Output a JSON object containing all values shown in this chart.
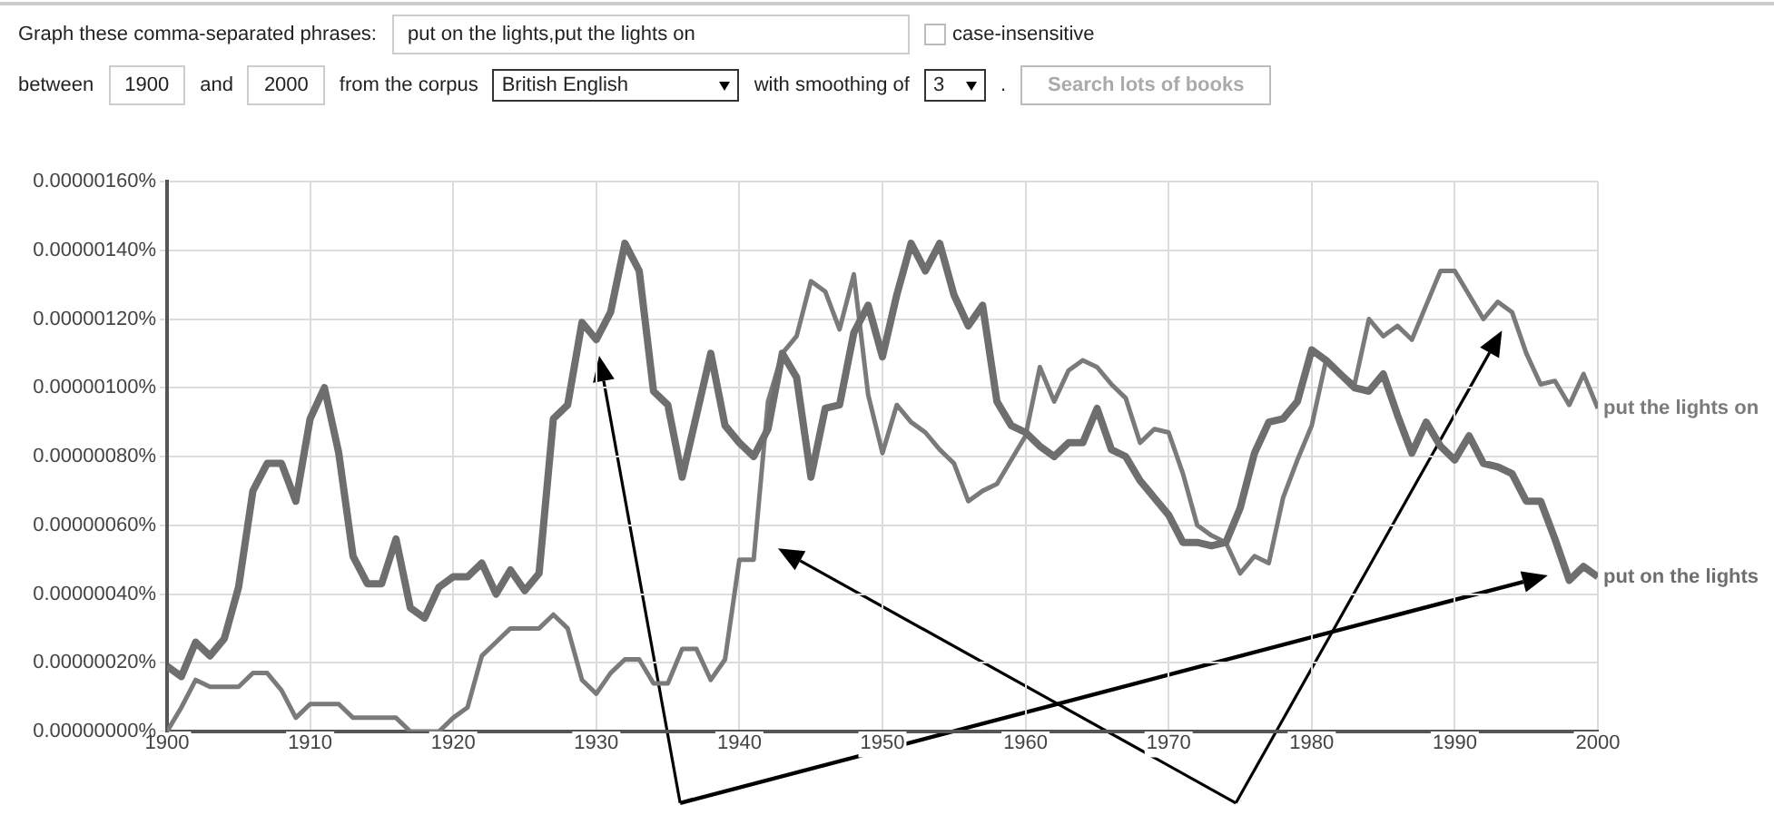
{
  "chart_data": {
    "type": "line",
    "x": [
      1900,
      1901,
      1902,
      1903,
      1904,
      1905,
      1906,
      1907,
      1908,
      1909,
      1910,
      1911,
      1912,
      1913,
      1914,
      1915,
      1916,
      1917,
      1918,
      1919,
      1920,
      1921,
      1922,
      1923,
      1924,
      1925,
      1926,
      1927,
      1928,
      1929,
      1930,
      1931,
      1932,
      1933,
      1934,
      1935,
      1936,
      1937,
      1938,
      1939,
      1940,
      1941,
      1942,
      1943,
      1944,
      1945,
      1946,
      1947,
      1948,
      1949,
      1950,
      1951,
      1952,
      1953,
      1954,
      1955,
      1956,
      1957,
      1958,
      1959,
      1960,
      1961,
      1962,
      1963,
      1964,
      1965,
      1966,
      1967,
      1968,
      1969,
      1970,
      1971,
      1972,
      1973,
      1974,
      1975,
      1976,
      1977,
      1978,
      1979,
      1980,
      1981,
      1982,
      1983,
      1984,
      1985,
      1986,
      1987,
      1988,
      1989,
      1990,
      1991,
      1992,
      1993,
      1994,
      1995,
      1996,
      1997,
      1998,
      1999,
      2000
    ],
    "series": [
      {
        "name": "put on the lights",
        "color": "#6e6e6e",
        "values": [
          1.9e-07,
          1.6e-07,
          2.6e-07,
          2.2e-07,
          2.7e-07,
          4.2e-07,
          7e-07,
          7.8e-07,
          7.8e-07,
          6.7e-07,
          9.1e-07,
          1e-06,
          8.1e-07,
          5.1e-07,
          4.3e-07,
          4.3e-07,
          5.6e-07,
          3.6e-07,
          3.3e-07,
          4.2e-07,
          4.5e-07,
          4.5e-07,
          4.9e-07,
          4e-07,
          4.7e-07,
          4.1e-07,
          4.6e-07,
          9.1e-07,
          9.5e-07,
          1.19e-06,
          1.14e-06,
          1.22e-06,
          1.42e-06,
          1.34e-06,
          9.9e-07,
          9.5e-07,
          7.4e-07,
          9.2e-07,
          1.1e-06,
          8.9e-07,
          8.4e-07,
          8e-07,
          8.8e-07,
          1.1e-06,
          1.03e-06,
          7.4e-07,
          9.4e-07,
          9.5e-07,
          1.16e-06,
          1.24e-06,
          1.09e-06,
          1.27e-06,
          1.42e-06,
          1.34e-06,
          1.42e-06,
          1.27e-06,
          1.18e-06,
          1.24e-06,
          9.6e-07,
          8.9e-07,
          8.7e-07,
          8.3e-07,
          8e-07,
          8.4e-07,
          8.4e-07,
          9.4e-07,
          8.2e-07,
          8e-07,
          7.3e-07,
          6.8e-07,
          6.3e-07,
          5.5e-07,
          5.5e-07,
          5.4e-07,
          5.5e-07,
          6.5e-07,
          8.1e-07,
          9e-07,
          9.1e-07,
          9.6e-07,
          1.11e-06,
          1.08e-06,
          1.04e-06,
          1e-06,
          9.9e-07,
          1.04e-06,
          9.2e-07,
          8.1e-07,
          9e-07,
          8.3e-07,
          7.9e-07,
          8.6e-07,
          7.8e-07,
          7.7e-07,
          7.5e-07,
          6.7e-07,
          6.7e-07,
          5.6e-07,
          4.4e-07,
          4.8e-07,
          4.5e-07
        ]
      },
      {
        "name": "put the lights on",
        "color": "#7a7a7a",
        "values": [
          0,
          7e-08,
          1.5e-07,
          1.3e-07,
          1.3e-07,
          1.3e-07,
          1.7e-07,
          1.7e-07,
          1.2e-07,
          4e-08,
          8e-08,
          8e-08,
          8e-08,
          4e-08,
          4e-08,
          4e-08,
          4e-08,
          0,
          0,
          0,
          4e-08,
          7e-08,
          2.2e-07,
          2.6e-07,
          3e-07,
          3e-07,
          3e-07,
          3.4e-07,
          3e-07,
          1.5e-07,
          1.1e-07,
          1.7e-07,
          2.1e-07,
          2.1e-07,
          1.4e-07,
          1.4e-07,
          2.4e-07,
          2.4e-07,
          1.5e-07,
          2.1e-07,
          5e-07,
          5e-07,
          9.6e-07,
          1.1e-06,
          1.15e-06,
          1.31e-06,
          1.28e-06,
          1.17e-06,
          1.33e-06,
          9.8e-07,
          8.1e-07,
          9.5e-07,
          9e-07,
          8.7e-07,
          8.2e-07,
          7.8e-07,
          6.7e-07,
          7e-07,
          7.2e-07,
          7.9e-07,
          8.6e-07,
          1.06e-06,
          9.6e-07,
          1.05e-06,
          1.08e-06,
          1.06e-06,
          1.01e-06,
          9.7e-07,
          8.4e-07,
          8.8e-07,
          8.7e-07,
          7.5e-07,
          6e-07,
          5.7e-07,
          5.5e-07,
          4.6e-07,
          5.1e-07,
          4.9e-07,
          6.8e-07,
          7.9e-07,
          8.9e-07,
          1.08e-06,
          1.04e-06,
          1.01e-06,
          1.2e-06,
          1.15e-06,
          1.18e-06,
          1.14e-06,
          1.24e-06,
          1.34e-06,
          1.34e-06,
          1.27e-06,
          1.2e-06,
          1.25e-06,
          1.22e-06,
          1.1e-06,
          1.01e-06,
          1.02e-06,
          9.5e-07,
          1.04e-06,
          9.4e-07
        ]
      }
    ],
    "xlim": [
      1900,
      2000
    ],
    "xticks": [
      1900,
      1910,
      1920,
      1930,
      1940,
      1950,
      1960,
      1970,
      1980,
      1990,
      2000
    ],
    "ylim": [
      0,
      1.6e-06
    ],
    "yticks": [
      {
        "value": 0,
        "label": "0.00000000%"
      },
      {
        "value": 2e-07,
        "label": "0.00000020%"
      },
      {
        "value": 4e-07,
        "label": "0.00000040%"
      },
      {
        "value": 6e-07,
        "label": "0.00000060%"
      },
      {
        "value": 8e-07,
        "label": "0.00000080%"
      },
      {
        "value": 1e-06,
        "label": "0.00000100%"
      },
      {
        "value": 1.2e-06,
        "label": "0.00000120%"
      },
      {
        "value": 1.4e-06,
        "label": "0.00000140%"
      },
      {
        "value": 1.6e-06,
        "label": "0.00000160%"
      }
    ],
    "grid": true,
    "legend": false,
    "marker": "none",
    "line_style": "solid",
    "annotations": [
      "Graph these comma-separated phrases:",
      "put on the lights,put the lights on",
      "case-insensitive",
      "between",
      "1900",
      "and",
      "2000",
      "from the corpus",
      "British English",
      "with smoothing of",
      "3",
      ".",
      "Search lots of books"
    ]
  }
}
